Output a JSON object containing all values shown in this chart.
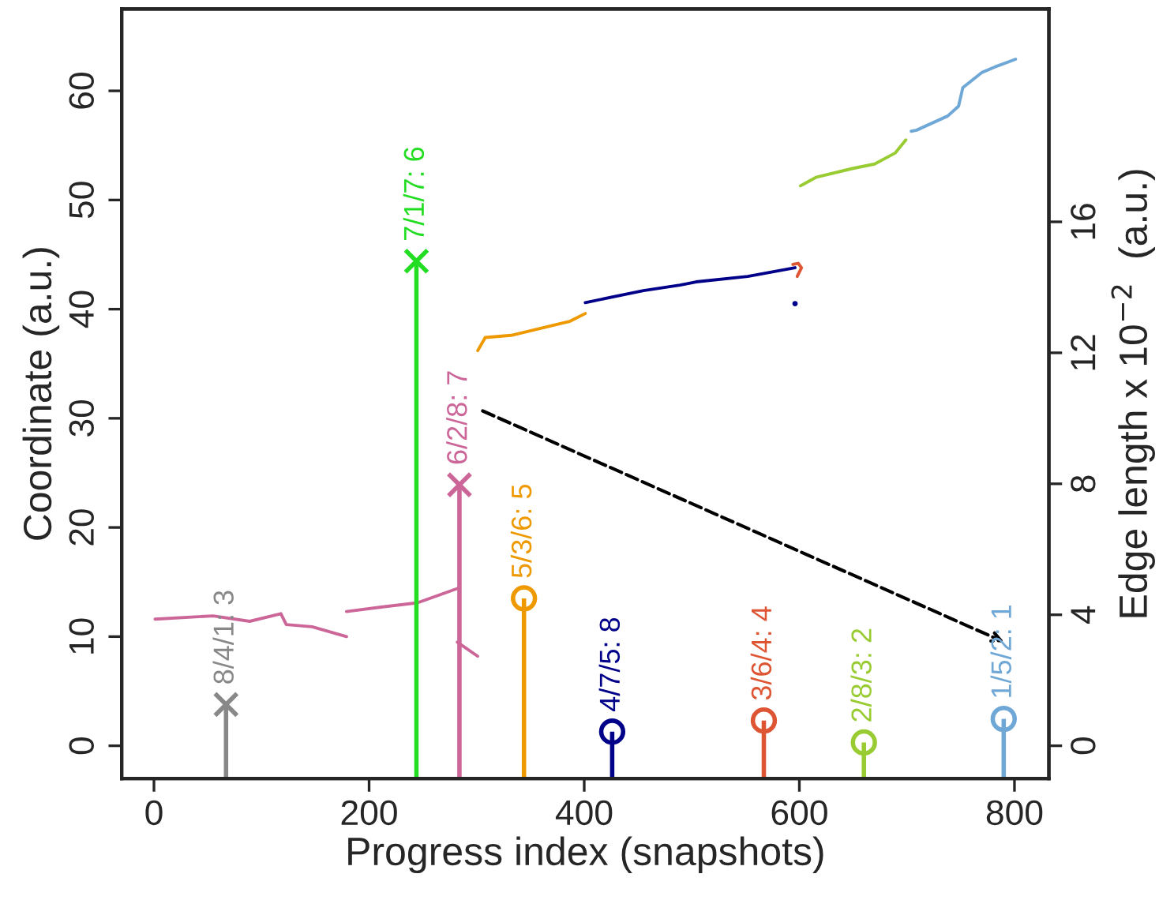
{
  "chart_data": {
    "type": "line",
    "xlabel": "Progress index (snapshots)",
    "ylabel": "Coordinate (a.u.)",
    "y2label": "Edge length x 10$^{−2}$  (a.u.)",
    "xlim": [
      -30,
      832
    ],
    "xticks": [
      0,
      200,
      400,
      600,
      800
    ],
    "ylim": [
      -3,
      67.5
    ],
    "yticks": [
      0,
      10,
      20,
      30,
      40,
      50,
      60
    ],
    "y2lim": [
      -1,
      22.5
    ],
    "y2ticks": [
      0,
      4,
      8,
      12,
      16
    ],
    "grid": false,
    "legend": false,
    "series": [
      {
        "color": "#cc6699",
        "x": [
          1,
          55,
          89,
          118,
          123,
          147,
          179
        ],
        "values": [
          11.6,
          11.9,
          11.4,
          12.1,
          11.1,
          10.9,
          10.0
        ]
      },
      {
        "color": "#cc6699",
        "x": [
          179,
          211,
          245,
          282
        ],
        "values": [
          12.3,
          12.7,
          13.1,
          14.4
        ]
      },
      {
        "color": "#cc6699",
        "x": [
          282,
          301
        ],
        "values": [
          9.5,
          8.2
        ]
      },
      {
        "color": "#ee9900",
        "x": [
          301,
          308,
          332,
          387,
          401
        ],
        "values": [
          36.2,
          37.4,
          37.6,
          38.9,
          39.6
        ]
      },
      {
        "color": "#000088",
        "x": [
          401,
          455,
          489,
          504,
          552,
          596
        ],
        "values": [
          40.6,
          41.7,
          42.2,
          42.5,
          43.0,
          43.8
        ]
      },
      {
        "type": "scatter",
        "color": "#000088",
        "x": [
          596
        ],
        "values": [
          40.5
        ]
      },
      {
        "color": "#dd5533",
        "x": [
          594,
          599,
          602,
          598
        ],
        "values": [
          44.1,
          44.2,
          43.8,
          43.0
        ]
      },
      {
        "color": "#99cc33",
        "x": [
          601,
          616,
          650,
          670,
          689,
          699
        ],
        "values": [
          51.3,
          52.1,
          52.9,
          53.3,
          54.3,
          55.5
        ]
      },
      {
        "color": "#6fa8d6",
        "x": [
          704,
          709,
          738,
          748,
          752,
          770,
          782,
          801
        ],
        "values": [
          56.3,
          56.4,
          57.7,
          58.6,
          60.3,
          61.7,
          62.2,
          62.9
        ]
      },
      {
        "type": "lollipop",
        "axis": "y2",
        "marker": "cross",
        "name": "8/4/1: 3",
        "color": "#888888",
        "x": [
          67
        ],
        "values": [
          1.26
        ]
      },
      {
        "type": "lollipop",
        "axis": "y2",
        "marker": "cross",
        "name": "7/1/7: 6",
        "color": "#22dd22",
        "x": [
          244
        ],
        "values": [
          14.8
        ]
      },
      {
        "type": "lollipop",
        "axis": "y2",
        "marker": "cross",
        "name": "6/2/8: 7",
        "color": "#cc6699",
        "x": [
          284
        ],
        "values": [
          7.97
        ]
      },
      {
        "type": "lollipop",
        "axis": "y2",
        "marker": "circle",
        "name": "5/3/6: 5",
        "color": "#ee9900",
        "x": [
          344
        ],
        "values": [
          4.5
        ]
      },
      {
        "type": "lollipop",
        "axis": "y2",
        "marker": "circle",
        "name": "4/7/5: 8",
        "color": "#000088",
        "x": [
          426
        ],
        "values": [
          0.43
        ]
      },
      {
        "type": "lollipop",
        "axis": "y2",
        "marker": "circle",
        "name": "3/6/4: 4",
        "color": "#dd5533",
        "x": [
          567
        ],
        "values": [
          0.77
        ]
      },
      {
        "type": "lollipop",
        "axis": "y2",
        "marker": "circle",
        "name": "2/8/3: 2",
        "color": "#99cc33",
        "x": [
          660
        ],
        "values": [
          0.1
        ]
      },
      {
        "type": "lollipop",
        "axis": "y2",
        "marker": "circle",
        "name": "1/5/2: 1",
        "color": "#6fa8d6",
        "x": [
          790
        ],
        "values": [
          0.82
        ]
      }
    ]
  }
}
